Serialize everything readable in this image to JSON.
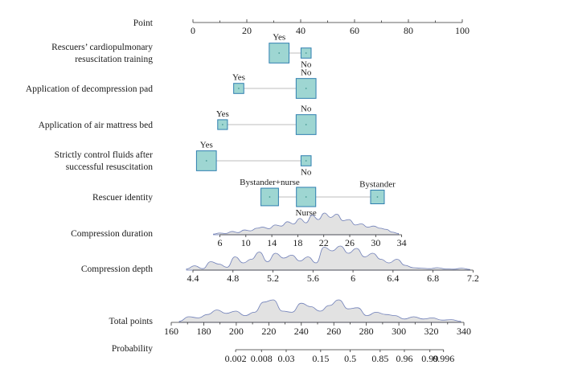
{
  "chart_data": {
    "type": "nomogram",
    "title": "",
    "colors": {
      "box_fill": "#9ed6d2",
      "box_stroke": "#2f7fb0",
      "density_fill": "#e2e2e2",
      "density_stroke": "#6f7fb8",
      "axis": "#333333"
    },
    "points_axis": {
      "label": "Point",
      "range": [
        0,
        100
      ],
      "ticks": [
        0,
        20,
        40,
        60,
        80,
        100
      ]
    },
    "categorical": [
      {
        "id": "training",
        "label_lines": [
          "Rescuers’ cardiopulmonary",
          "resuscitation training"
        ],
        "levels": [
          {
            "name": "Yes",
            "points": 32,
            "weight": 0.85,
            "label_pos": "above"
          },
          {
            "name": "No",
            "points": 42,
            "weight": 0.3,
            "label_pos": "below"
          }
        ]
      },
      {
        "id": "pad",
        "label_lines": [
          "Application of decompression pad"
        ],
        "levels": [
          {
            "name": "Yes",
            "points": 17,
            "weight": 0.3,
            "label_pos": "above"
          },
          {
            "name": "No",
            "points": 42,
            "weight": 0.85,
            "label_pos": "above"
          }
        ]
      },
      {
        "id": "mattress",
        "label_lines": [
          "Application of air mattress bed"
        ],
        "levels": [
          {
            "name": "Yes",
            "points": 11,
            "weight": 0.28,
            "label_pos": "above"
          },
          {
            "name": "No",
            "points": 42,
            "weight": 0.85,
            "label_pos": "above"
          }
        ]
      },
      {
        "id": "fluids",
        "label_lines": [
          "Strictly control fluids after",
          "successful resuscitation"
        ],
        "levels": [
          {
            "name": "Yes",
            "points": 5,
            "weight": 0.85,
            "label_pos": "above"
          },
          {
            "name": "No",
            "points": 42,
            "weight": 0.3,
            "label_pos": "below"
          }
        ]
      },
      {
        "id": "identity",
        "label_lines": [
          "Rescuer identity"
        ],
        "levels": [
          {
            "name": "Bystander+nurse",
            "points": 28.5,
            "weight": 0.72,
            "label_pos": "above"
          },
          {
            "name": "Nurse",
            "points": 42,
            "weight": 0.82,
            "label_pos": "below"
          },
          {
            "name": "Bystander",
            "points": 68.5,
            "weight": 0.5,
            "label_pos": "above"
          }
        ]
      }
    ],
    "continuous": [
      {
        "id": "duration",
        "label": "Compression duration",
        "ticks": [
          6,
          10,
          14,
          18,
          22,
          26,
          30,
          34
        ],
        "value_range": [
          6,
          34
        ],
        "point_range": [
          10,
          77.5
        ],
        "density_height": 0.9,
        "density": [
          0.03,
          0.08,
          0.06,
          0.15,
          0.1,
          0.22,
          0.18,
          0.3,
          0.35,
          0.28,
          0.45,
          0.4,
          0.6,
          0.5,
          0.75,
          0.55,
          0.9,
          0.7,
          1.0,
          0.8,
          0.95,
          0.65,
          0.7,
          0.45,
          0.5,
          0.35,
          0.4,
          0.3,
          0.25,
          0.12,
          0.06
        ]
      },
      {
        "id": "depth",
        "label": "Compression depth",
        "ticks": [
          4.4,
          4.8,
          5.2,
          5.6,
          6,
          6.4,
          6.8,
          7.2
        ],
        "value_range": [
          4.4,
          7.2
        ],
        "point_range": [
          0,
          104
        ],
        "density_height": 1.0,
        "density": [
          0.05,
          0.18,
          0.06,
          0.35,
          0.25,
          0.12,
          0.55,
          0.3,
          0.45,
          0.75,
          0.35,
          0.7,
          0.5,
          0.62,
          0.38,
          0.55,
          0.3,
          0.95,
          0.8,
          1.0,
          0.7,
          0.9,
          0.55,
          0.7,
          0.45,
          0.3,
          0.45,
          0.2,
          0.1,
          0.08,
          0.06,
          0.1,
          0.05,
          0.04,
          0.08,
          0.03
        ]
      }
    ],
    "total_points": {
      "label": "Total points",
      "ticks": [
        160,
        180,
        200,
        220,
        240,
        260,
        280,
        300,
        320,
        340
      ],
      "range": [
        160,
        340
      ],
      "density_height": 1.0,
      "density": [
        0.05,
        0.25,
        0.2,
        0.35,
        0.55,
        0.4,
        0.5,
        0.3,
        0.45,
        0.9,
        1.0,
        0.5,
        0.45,
        0.85,
        0.7,
        0.5,
        0.75,
        1.0,
        0.6,
        0.65,
        0.3,
        0.45,
        0.35,
        0.3,
        0.15,
        0.25,
        0.15,
        0.2,
        0.1,
        0.12,
        0.05
      ]
    },
    "probability": {
      "label": "Probability",
      "ticks": [
        "0.002",
        "0.008",
        "0.03",
        "0.15",
        "0.5",
        "0.85",
        "0.96",
        "0.99",
        "0.996"
      ],
      "tick_total_points": [
        199.6,
        215.5,
        230.7,
        251.9,
        270.1,
        288.5,
        303.4,
        319.1,
        327.5
      ]
    }
  }
}
